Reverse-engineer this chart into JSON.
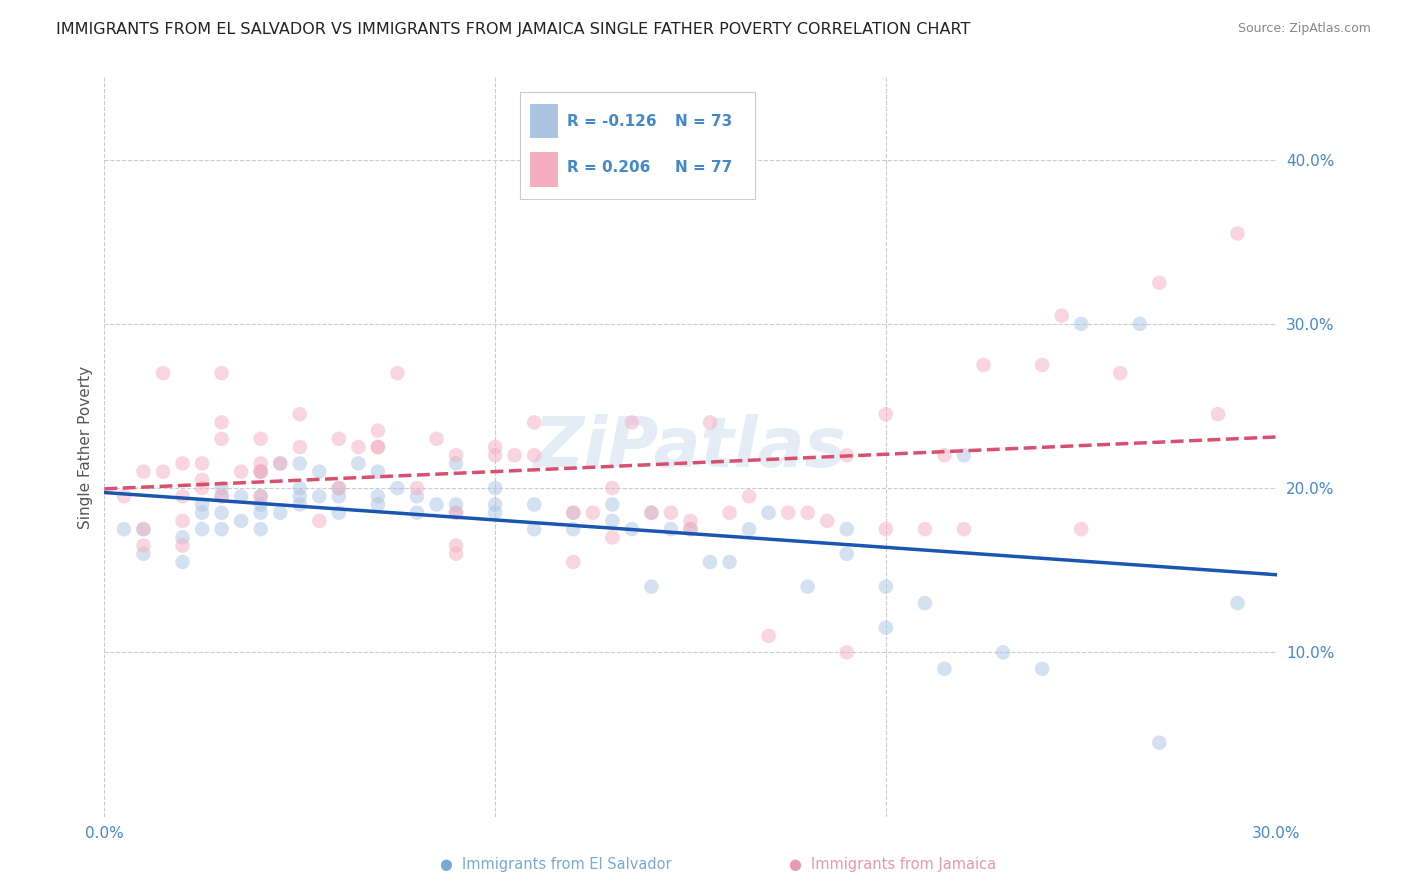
{
  "title": "IMMIGRANTS FROM EL SALVADOR VS IMMIGRANTS FROM JAMAICA SINGLE FATHER POVERTY CORRELATION CHART",
  "source": "Source: ZipAtlas.com",
  "ylabel": "Single Father Poverty",
  "legend_r1": "-0.126",
  "legend_n1": "73",
  "legend_r2": "0.206",
  "legend_n2": "77",
  "el_salvador_color": "#aac4e2",
  "jamaica_color": "#f5adc0",
  "trendline_blue": "#1a56b0",
  "trendline_pink": "#d94f6e",
  "watermark": "ZiPatlas",
  "xlim": [
    0.0,
    0.3
  ],
  "ylim": [
    0.0,
    0.45
  ],
  "yticks": [
    0.1,
    0.2,
    0.3,
    0.4
  ],
  "ytick_labels": [
    "10.0%",
    "20.0%",
    "30.0%",
    "40.0%"
  ],
  "xticks": [
    0.0,
    0.1,
    0.2,
    0.3
  ],
  "xtick_labels": [
    "0.0%",
    "",
    "",
    "30.0%"
  ],
  "el_salvador_x": [
    0.005,
    0.01,
    0.01,
    0.02,
    0.02,
    0.025,
    0.025,
    0.025,
    0.03,
    0.03,
    0.03,
    0.03,
    0.035,
    0.035,
    0.04,
    0.04,
    0.04,
    0.04,
    0.04,
    0.045,
    0.045,
    0.05,
    0.05,
    0.05,
    0.05,
    0.055,
    0.055,
    0.06,
    0.06,
    0.06,
    0.065,
    0.07,
    0.07,
    0.07,
    0.075,
    0.08,
    0.08,
    0.085,
    0.09,
    0.09,
    0.09,
    0.1,
    0.1,
    0.1,
    0.11,
    0.11,
    0.12,
    0.12,
    0.13,
    0.13,
    0.135,
    0.14,
    0.14,
    0.145,
    0.15,
    0.155,
    0.16,
    0.165,
    0.17,
    0.18,
    0.19,
    0.19,
    0.2,
    0.2,
    0.21,
    0.215,
    0.22,
    0.23,
    0.24,
    0.25,
    0.265,
    0.27,
    0.29
  ],
  "el_salvador_y": [
    0.175,
    0.16,
    0.175,
    0.155,
    0.17,
    0.175,
    0.185,
    0.19,
    0.175,
    0.185,
    0.195,
    0.2,
    0.18,
    0.195,
    0.175,
    0.185,
    0.19,
    0.195,
    0.21,
    0.185,
    0.215,
    0.19,
    0.195,
    0.2,
    0.215,
    0.195,
    0.21,
    0.185,
    0.195,
    0.2,
    0.215,
    0.19,
    0.195,
    0.21,
    0.2,
    0.185,
    0.195,
    0.19,
    0.185,
    0.19,
    0.215,
    0.185,
    0.19,
    0.2,
    0.175,
    0.19,
    0.185,
    0.175,
    0.18,
    0.19,
    0.175,
    0.14,
    0.185,
    0.175,
    0.175,
    0.155,
    0.155,
    0.175,
    0.185,
    0.14,
    0.175,
    0.16,
    0.115,
    0.14,
    0.13,
    0.09,
    0.22,
    0.1,
    0.09,
    0.3,
    0.3,
    0.045,
    0.13
  ],
  "jamaica_x": [
    0.005,
    0.01,
    0.01,
    0.01,
    0.015,
    0.015,
    0.02,
    0.02,
    0.02,
    0.02,
    0.025,
    0.025,
    0.025,
    0.03,
    0.03,
    0.03,
    0.03,
    0.035,
    0.04,
    0.04,
    0.04,
    0.04,
    0.04,
    0.045,
    0.05,
    0.05,
    0.055,
    0.06,
    0.06,
    0.065,
    0.07,
    0.07,
    0.07,
    0.075,
    0.08,
    0.085,
    0.09,
    0.09,
    0.09,
    0.09,
    0.1,
    0.1,
    0.105,
    0.11,
    0.11,
    0.12,
    0.12,
    0.125,
    0.13,
    0.13,
    0.135,
    0.14,
    0.145,
    0.15,
    0.15,
    0.155,
    0.16,
    0.165,
    0.17,
    0.175,
    0.18,
    0.185,
    0.19,
    0.19,
    0.2,
    0.2,
    0.21,
    0.215,
    0.22,
    0.225,
    0.24,
    0.245,
    0.25,
    0.26,
    0.27,
    0.285,
    0.29
  ],
  "jamaica_y": [
    0.195,
    0.165,
    0.175,
    0.21,
    0.21,
    0.27,
    0.165,
    0.18,
    0.195,
    0.215,
    0.2,
    0.205,
    0.215,
    0.195,
    0.23,
    0.24,
    0.27,
    0.21,
    0.195,
    0.215,
    0.21,
    0.21,
    0.23,
    0.215,
    0.225,
    0.245,
    0.18,
    0.23,
    0.2,
    0.225,
    0.225,
    0.235,
    0.225,
    0.27,
    0.2,
    0.23,
    0.16,
    0.185,
    0.22,
    0.165,
    0.22,
    0.225,
    0.22,
    0.22,
    0.24,
    0.185,
    0.155,
    0.185,
    0.2,
    0.17,
    0.24,
    0.185,
    0.185,
    0.175,
    0.18,
    0.24,
    0.185,
    0.195,
    0.11,
    0.185,
    0.185,
    0.18,
    0.22,
    0.1,
    0.245,
    0.175,
    0.175,
    0.22,
    0.175,
    0.275,
    0.275,
    0.305,
    0.175,
    0.27,
    0.325,
    0.245,
    0.355
  ],
  "marker_size": 110,
  "marker_alpha": 0.5,
  "background_color": "#ffffff",
  "title_color": "#222222",
  "title_fontsize": 11.5,
  "axis_color": "#4488cc",
  "source_color": "#888888",
  "source_fontsize": 9,
  "legend_label_es": "Immigrants from El Salvador",
  "legend_label_jm": "Immigrants from Jamaica"
}
